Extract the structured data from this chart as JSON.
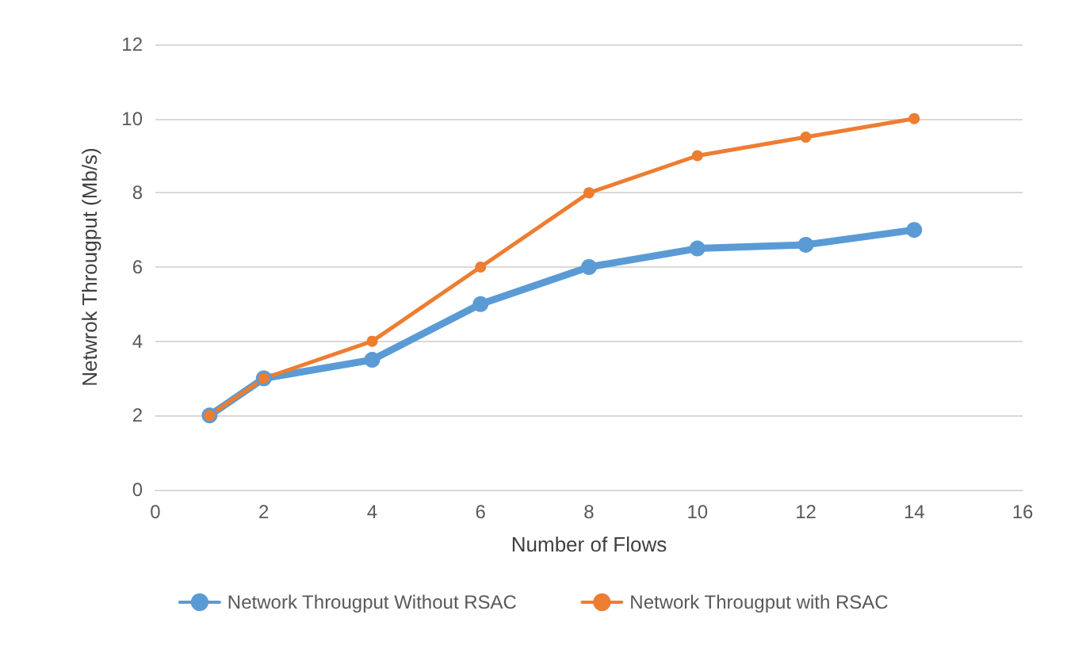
{
  "chart_data": {
    "type": "line",
    "xlabel": "Number of Flows",
    "ylabel": "Netwrok Througput (Mb/s)",
    "series": [
      {
        "name": "Network Througput Without RSAC",
        "color": "#5b9bd5",
        "x": [
          1,
          2,
          4,
          6,
          8,
          10,
          12,
          14
        ],
        "values": [
          2,
          3,
          3.5,
          5,
          6,
          6.5,
          6.6,
          7
        ]
      },
      {
        "name": "Network Througput with RSAC",
        "color": "#ed7d31",
        "x": [
          1,
          2,
          4,
          6,
          8,
          10,
          12,
          14
        ],
        "values": [
          2,
          3,
          4,
          6,
          8,
          9,
          9.5,
          10
        ]
      }
    ],
    "xlim": [
      0,
      16
    ],
    "xticks": [
      0,
      2,
      4,
      6,
      8,
      10,
      12,
      14,
      16
    ],
    "ylim": [
      0,
      12
    ],
    "yticks": [
      0,
      2,
      4,
      6,
      8,
      10,
      12
    ],
    "grid": "y",
    "legend": "bottom",
    "marker": "circle",
    "line_style": "solid"
  }
}
